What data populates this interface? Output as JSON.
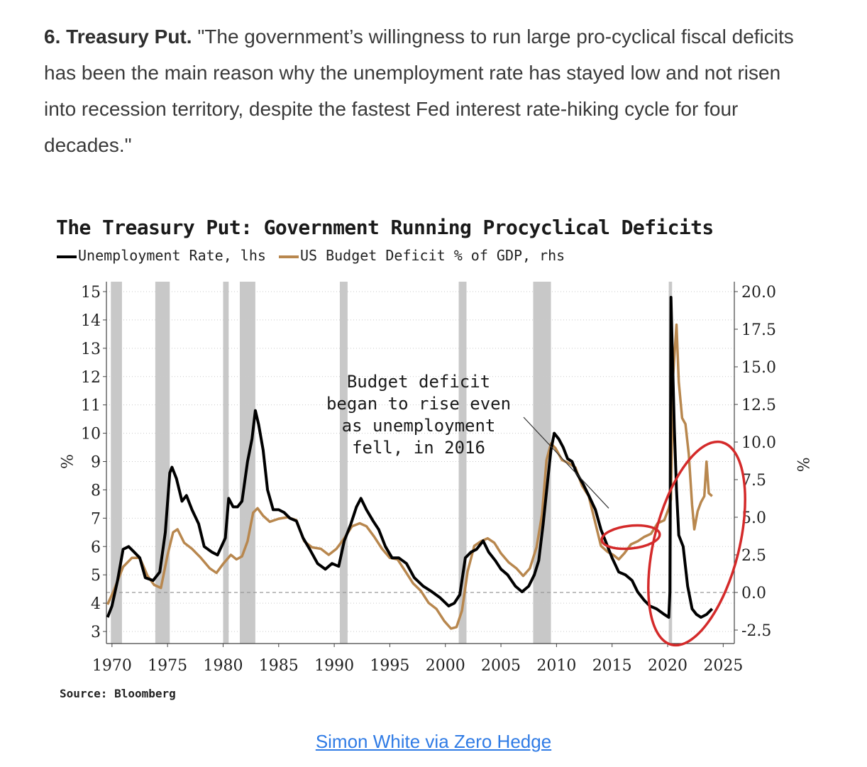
{
  "quote": {
    "heading": "6. Treasury Put.",
    "text": " \"The government’s willingness to run large pro-cyclical fiscal deficits has been the main reason why the unemployment rate has stayed low and not risen into recession territory, despite the fastest Fed interest rate-hiking cycle for four decades.\""
  },
  "colors": {
    "unemployment": "#000000",
    "deficit": "#b8874e",
    "recession": "#c8c8c8",
    "highlight": "#d42a2a",
    "link": "#2f7be5"
  },
  "chart_data": {
    "type": "line",
    "title": "The Treasury Put: Government Running Procyclical Deficits",
    "legend": [
      {
        "label": "Unemployment Rate, lhs",
        "color": "#000000"
      },
      {
        "label": "US Budget Deficit % of GDP, rhs",
        "color": "#b8874e"
      }
    ],
    "left_axis": {
      "label": "%",
      "range": [
        3,
        15
      ],
      "ticks": [
        "3",
        "4",
        "5",
        "6",
        "7",
        "8",
        "9",
        "10",
        "11",
        "12",
        "13",
        "14",
        "15"
      ]
    },
    "right_axis": {
      "label": "%",
      "range": [
        -2.5,
        20.0
      ],
      "ticks": [
        "-2.5",
        "0.0",
        "2.5",
        "5.0",
        "7.5",
        "10.0",
        "12.5",
        "15.0",
        "17.5",
        "20.0"
      ]
    },
    "x_axis": {
      "range": [
        1969.5,
        2026
      ],
      "ticks": [
        "1970",
        "1975",
        "1980",
        "1985",
        "1990",
        "1995",
        "2000",
        "2005",
        "2010",
        "2015",
        "2020",
        "2025"
      ]
    },
    "recessions": [
      [
        1969.9,
        1970.9
      ],
      [
        1973.9,
        1975.2
      ],
      [
        1980.0,
        1980.5
      ],
      [
        1981.5,
        1982.9
      ],
      [
        1990.5,
        1991.2
      ],
      [
        2001.2,
        2001.9
      ],
      [
        2007.9,
        2009.5
      ],
      [
        2020.1,
        2020.4
      ]
    ],
    "series": [
      {
        "name": "Unemployment Rate",
        "axis": "left",
        "points": [
          [
            1969.6,
            3.5
          ],
          [
            1970.0,
            3.9
          ],
          [
            1970.5,
            4.8
          ],
          [
            1971.0,
            5.9
          ],
          [
            1971.5,
            6.0
          ],
          [
            1972.0,
            5.8
          ],
          [
            1972.5,
            5.6
          ],
          [
            1973.0,
            4.9
          ],
          [
            1973.7,
            4.8
          ],
          [
            1974.3,
            5.1
          ],
          [
            1974.8,
            6.5
          ],
          [
            1975.2,
            8.6
          ],
          [
            1975.4,
            8.8
          ],
          [
            1975.8,
            8.4
          ],
          [
            1976.3,
            7.6
          ],
          [
            1976.7,
            7.8
          ],
          [
            1977.2,
            7.3
          ],
          [
            1977.8,
            6.8
          ],
          [
            1978.3,
            6.0
          ],
          [
            1979.0,
            5.8
          ],
          [
            1979.5,
            5.7
          ],
          [
            1980.2,
            6.3
          ],
          [
            1980.5,
            7.7
          ],
          [
            1980.9,
            7.4
          ],
          [
            1981.3,
            7.4
          ],
          [
            1981.7,
            7.6
          ],
          [
            1982.2,
            9.0
          ],
          [
            1982.6,
            9.8
          ],
          [
            1982.9,
            10.8
          ],
          [
            1983.2,
            10.3
          ],
          [
            1983.6,
            9.4
          ],
          [
            1984.0,
            8.0
          ],
          [
            1984.5,
            7.3
          ],
          [
            1985.0,
            7.3
          ],
          [
            1985.5,
            7.2
          ],
          [
            1986.0,
            7.0
          ],
          [
            1986.6,
            6.9
          ],
          [
            1987.2,
            6.3
          ],
          [
            1987.8,
            5.9
          ],
          [
            1988.5,
            5.4
          ],
          [
            1989.2,
            5.2
          ],
          [
            1989.8,
            5.4
          ],
          [
            1990.4,
            5.3
          ],
          [
            1990.9,
            6.2
          ],
          [
            1991.5,
            6.8
          ],
          [
            1992.0,
            7.4
          ],
          [
            1992.4,
            7.7
          ],
          [
            1992.9,
            7.3
          ],
          [
            1993.5,
            6.9
          ],
          [
            1994.0,
            6.6
          ],
          [
            1994.6,
            6.0
          ],
          [
            1995.2,
            5.6
          ],
          [
            1995.8,
            5.6
          ],
          [
            1996.5,
            5.4
          ],
          [
            1997.2,
            4.9
          ],
          [
            1998.0,
            4.6
          ],
          [
            1998.8,
            4.4
          ],
          [
            1999.5,
            4.2
          ],
          [
            2000.3,
            3.9
          ],
          [
            2000.8,
            4.0
          ],
          [
            2001.3,
            4.3
          ],
          [
            2001.8,
            5.6
          ],
          [
            2002.3,
            5.8
          ],
          [
            2002.8,
            5.9
          ],
          [
            2003.4,
            6.2
          ],
          [
            2003.9,
            5.8
          ],
          [
            2004.5,
            5.5
          ],
          [
            2005.0,
            5.2
          ],
          [
            2005.6,
            5.0
          ],
          [
            2006.3,
            4.6
          ],
          [
            2006.9,
            4.4
          ],
          [
            2007.5,
            4.6
          ],
          [
            2008.0,
            5.0
          ],
          [
            2008.4,
            5.5
          ],
          [
            2008.8,
            6.8
          ],
          [
            2009.2,
            8.3
          ],
          [
            2009.5,
            9.4
          ],
          [
            2009.8,
            10.0
          ],
          [
            2010.2,
            9.8
          ],
          [
            2010.6,
            9.5
          ],
          [
            2011.0,
            9.1
          ],
          [
            2011.4,
            9.0
          ],
          [
            2011.8,
            8.6
          ],
          [
            2012.4,
            8.2
          ],
          [
            2012.9,
            7.8
          ],
          [
            2013.5,
            7.3
          ],
          [
            2014.0,
            6.6
          ],
          [
            2014.5,
            6.1
          ],
          [
            2015.0,
            5.6
          ],
          [
            2015.6,
            5.1
          ],
          [
            2016.2,
            5.0
          ],
          [
            2016.8,
            4.8
          ],
          [
            2017.3,
            4.4
          ],
          [
            2017.9,
            4.1
          ],
          [
            2018.4,
            3.9
          ],
          [
            2019.0,
            3.8
          ],
          [
            2019.7,
            3.6
          ],
          [
            2020.1,
            3.5
          ],
          [
            2020.2,
            4.4
          ],
          [
            2020.3,
            14.8
          ],
          [
            2020.4,
            13.2
          ],
          [
            2020.6,
            10.2
          ],
          [
            2020.8,
            8.0
          ],
          [
            2021.0,
            6.4
          ],
          [
            2021.4,
            6.0
          ],
          [
            2021.8,
            4.6
          ],
          [
            2022.2,
            3.8
          ],
          [
            2022.6,
            3.6
          ],
          [
            2023.0,
            3.5
          ],
          [
            2023.5,
            3.6
          ],
          [
            2024.0,
            3.8
          ]
        ]
      },
      {
        "name": "US Budget Deficit % of GDP",
        "axis": "right",
        "points": [
          [
            1969.6,
            -0.8
          ],
          [
            1970.2,
            0.2
          ],
          [
            1971.0,
            1.7
          ],
          [
            1971.8,
            2.3
          ],
          [
            1972.5,
            2.3
          ],
          [
            1973.2,
            1.1
          ],
          [
            1973.8,
            0.5
          ],
          [
            1974.4,
            0.3
          ],
          [
            1975.0,
            2.5
          ],
          [
            1975.5,
            4.0
          ],
          [
            1975.9,
            4.2
          ],
          [
            1976.5,
            3.3
          ],
          [
            1977.2,
            2.9
          ],
          [
            1978.0,
            2.3
          ],
          [
            1978.8,
            1.6
          ],
          [
            1979.4,
            1.3
          ],
          [
            1980.0,
            1.9
          ],
          [
            1980.7,
            2.5
          ],
          [
            1981.2,
            2.2
          ],
          [
            1981.7,
            2.4
          ],
          [
            1982.2,
            3.4
          ],
          [
            1982.7,
            5.3
          ],
          [
            1983.1,
            5.6
          ],
          [
            1983.6,
            5.1
          ],
          [
            1984.2,
            4.7
          ],
          [
            1985.0,
            4.9
          ],
          [
            1985.8,
            5.0
          ],
          [
            1986.6,
            4.8
          ],
          [
            1987.3,
            3.4
          ],
          [
            1988.0,
            3.0
          ],
          [
            1988.8,
            2.9
          ],
          [
            1989.5,
            2.5
          ],
          [
            1990.2,
            2.9
          ],
          [
            1990.9,
            3.6
          ],
          [
            1991.6,
            4.4
          ],
          [
            1992.3,
            4.6
          ],
          [
            1992.9,
            4.4
          ],
          [
            1993.6,
            3.7
          ],
          [
            1994.3,
            2.9
          ],
          [
            1995.0,
            2.3
          ],
          [
            1995.7,
            2.2
          ],
          [
            1996.4,
            1.4
          ],
          [
            1997.1,
            0.6
          ],
          [
            1997.8,
            0.1
          ],
          [
            1998.5,
            -0.7
          ],
          [
            1999.2,
            -1.1
          ],
          [
            1999.9,
            -1.9
          ],
          [
            2000.5,
            -2.4
          ],
          [
            2001.0,
            -2.3
          ],
          [
            2001.5,
            -1.2
          ],
          [
            2002.0,
            1.4
          ],
          [
            2002.6,
            3.1
          ],
          [
            2003.2,
            3.4
          ],
          [
            2003.8,
            3.6
          ],
          [
            2004.4,
            3.3
          ],
          [
            2005.0,
            2.6
          ],
          [
            2005.7,
            2.0
          ],
          [
            2006.4,
            1.6
          ],
          [
            2007.0,
            1.1
          ],
          [
            2007.6,
            1.6
          ],
          [
            2008.2,
            3.0
          ],
          [
            2008.7,
            5.2
          ],
          [
            2009.1,
            8.8
          ],
          [
            2009.5,
            9.9
          ],
          [
            2009.9,
            9.6
          ],
          [
            2010.5,
            8.8
          ],
          [
            2011.1,
            8.6
          ],
          [
            2011.7,
            8.3
          ],
          [
            2012.3,
            7.1
          ],
          [
            2012.9,
            6.4
          ],
          [
            2013.5,
            4.6
          ],
          [
            2014.0,
            3.1
          ],
          [
            2014.6,
            2.7
          ],
          [
            2015.1,
            2.5
          ],
          [
            2015.6,
            2.2
          ],
          [
            2016.1,
            2.6
          ],
          [
            2016.7,
            3.2
          ],
          [
            2017.3,
            3.4
          ],
          [
            2017.9,
            3.7
          ],
          [
            2018.5,
            3.9
          ],
          [
            2019.1,
            4.6
          ],
          [
            2019.7,
            4.8
          ],
          [
            2020.1,
            5.6
          ],
          [
            2020.3,
            6.2
          ],
          [
            2020.5,
            14.5
          ],
          [
            2020.8,
            17.8
          ],
          [
            2021.0,
            14.0
          ],
          [
            2021.3,
            11.6
          ],
          [
            2021.6,
            11.2
          ],
          [
            2021.9,
            9.2
          ],
          [
            2022.2,
            5.8
          ],
          [
            2022.4,
            4.2
          ],
          [
            2022.7,
            5.4
          ],
          [
            2023.0,
            6.0
          ],
          [
            2023.3,
            6.4
          ],
          [
            2023.5,
            8.7
          ],
          [
            2023.7,
            6.6
          ],
          [
            2024.0,
            6.4
          ]
        ]
      }
    ],
    "annotations": [
      {
        "lines": [
          "Budget deficit",
          "began to rise even",
          "as unemployment",
          "fell, in 2016"
        ],
        "arrow_to_year": 2014.7,
        "arrow_to_value": 5.6
      }
    ],
    "highlight_ellipses": [
      "2015-2019 deficit rise",
      "2020-2024 post-pandemic"
    ],
    "source": "Source: Bloomberg"
  },
  "credit": {
    "label": "Simon White via Zero Hedge"
  }
}
